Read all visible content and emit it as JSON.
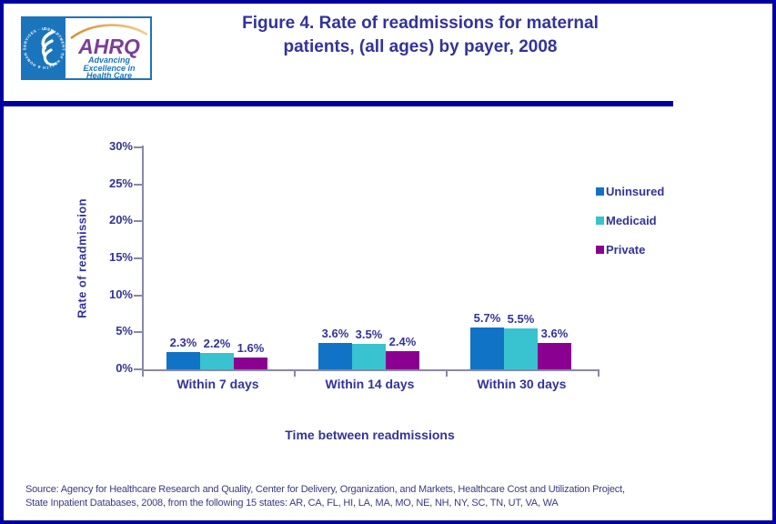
{
  "page": {
    "title_line1": "Figure 4. Rate of readmissions for maternal",
    "title_line2": "patients, (all ages) by payer, 2008",
    "source_line1": "Source: Agency for Healthcare Research and Quality, Center for Delivery, Organization, and Markets, Healthcare Cost and Utilization Project,",
    "source_line2": "State Inpatient Databases, 2008, from the following 15 states: AR, CA, FL, HI, LA, MA, MO, NE, NH, NY, SC, TN, UT, VA, WA"
  },
  "logo": {
    "seal_text": "DEPARTMENT OF HEALTH & HUMAN SERVICES · USA ·",
    "wordmark": "AHRQ",
    "tagline_line1": "Advancing",
    "tagline_line2": "Excellence in",
    "tagline_line3": "Health Care"
  },
  "colors": {
    "page_border": "#0000A0",
    "navy_text": "#333399",
    "axis": "#8888A8",
    "logo_blue": "#1B75BC",
    "ahrq_purple": "#7B3E98",
    "arc_orange": "#E9A43C",
    "source_text": "#3B3B85"
  },
  "chart_data": {
    "type": "bar",
    "title": "Figure 4. Rate of readmissions for maternal patients, (all ages) by payer, 2008",
    "categories": [
      "Within 7 days",
      "Within 14 days",
      "Within 30 days"
    ],
    "series": [
      {
        "name": "Uninsured",
        "color": "#1173C5",
        "values": [
          2.3,
          3.6,
          5.7
        ]
      },
      {
        "name": "Medicaid",
        "color": "#39C2CF",
        "values": [
          2.2,
          3.5,
          5.5
        ]
      },
      {
        "name": "Private",
        "color": "#8A0090",
        "values": [
          1.6,
          2.4,
          3.6
        ]
      }
    ],
    "xlabel": "Time between readmissions",
    "ylabel": "Rate of readmission",
    "y_ticks": [
      "0%",
      "5%",
      "10%",
      "15%",
      "20%",
      "25%",
      "30%"
    ],
    "ylim": [
      0,
      30
    ],
    "grid": false,
    "legend_position": "right",
    "value_label_format": "0.0%"
  }
}
